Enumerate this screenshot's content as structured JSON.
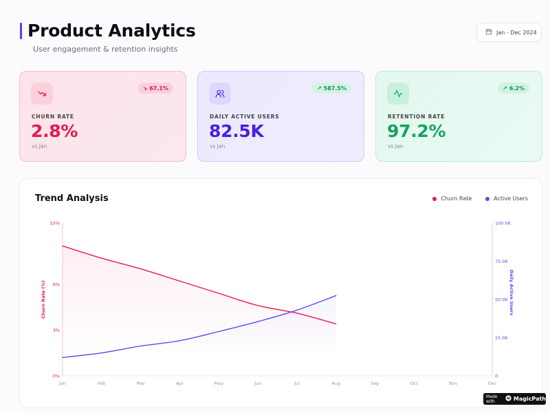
{
  "header": {
    "title": "Product Analytics",
    "subtitle": "User engagement & retention insights",
    "date_range": "Jan - Dec 2024"
  },
  "cards": [
    {
      "label": "CHURN RATE",
      "value": "2.8%",
      "change": "67.1%",
      "change_direction": "down",
      "sub": "vs Jan",
      "icon": "trending-down-icon",
      "accent": "#e5194f"
    },
    {
      "label": "DAILY ACTIVE USERS",
      "value": "82.5K",
      "change": "587.5%",
      "change_direction": "up",
      "sub": "vs Jan",
      "icon": "users-icon",
      "accent": "#4a1fe3"
    },
    {
      "label": "RETENTION RATE",
      "value": "97.2%",
      "change": "6.2%",
      "change_direction": "up",
      "sub": "vs Jan",
      "icon": "activity-icon",
      "accent": "#16a35f"
    }
  ],
  "chart_panel": {
    "title": "Trend Analysis",
    "legend": [
      "Churn Rate",
      "Active Users"
    ]
  },
  "chart_data": {
    "type": "line",
    "categories": [
      "Jan",
      "Feb",
      "Mar",
      "Apr",
      "May",
      "Jun",
      "Jul",
      "Aug",
      "Sep",
      "Oct",
      "Nov",
      "Dec"
    ],
    "series": [
      {
        "name": "Churn Rate",
        "axis": "left",
        "color": "#e5194f",
        "values": [
          8.5,
          7.7,
          7.0,
          6.2,
          5.4,
          4.6,
          4.1,
          3.4,
          null,
          null,
          null,
          null
        ]
      },
      {
        "name": "Active Users",
        "axis": "right",
        "color": "#5b4de8",
        "values": [
          12000,
          15000,
          19500,
          23000,
          29000,
          35500,
          43000,
          52500,
          null,
          null,
          null,
          null
        ]
      }
    ],
    "left_axis": {
      "label": "Churn Rate (%)",
      "ticks": [
        "0%",
        "3%",
        "6%",
        "10%"
      ],
      "tick_values": [
        0,
        3,
        6,
        10
      ],
      "range": [
        0,
        10
      ]
    },
    "right_axis": {
      "label": "Daily Active Users",
      "ticks": [
        "0",
        "25.0K",
        "50.0K",
        "75.0K",
        "100.0K"
      ],
      "tick_values": [
        0,
        25000,
        50000,
        75000,
        100000
      ],
      "range": [
        0,
        100000
      ]
    },
    "legend_position": "top-right",
    "grid": false
  },
  "footer": {
    "made_with": "Made with",
    "brand": "MagicPath"
  }
}
